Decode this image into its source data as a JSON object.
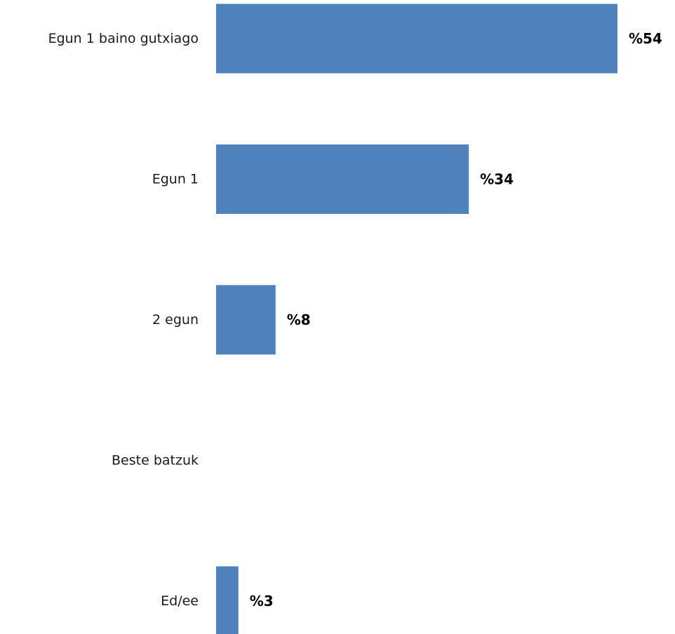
{
  "chart_data": {
    "type": "bar",
    "orientation": "horizontal",
    "categories": [
      "Egun 1 baino gutxiago",
      "Egun 1",
      "2 egun",
      "Beste batzuk",
      "Ed/ee"
    ],
    "values": [
      54,
      34,
      8,
      0,
      3
    ],
    "value_labels": [
      "%54",
      "%34",
      "%8",
      "",
      "%3"
    ],
    "title": "",
    "xlabel": "",
    "ylabel": "",
    "xlim": [
      0,
      54
    ],
    "grid": false,
    "legend": "none",
    "bar_color": "#4f81bd"
  }
}
